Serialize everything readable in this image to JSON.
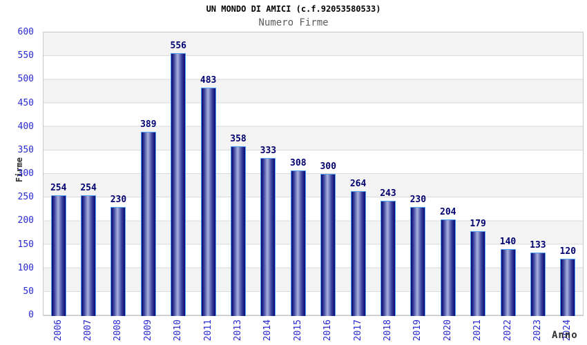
{
  "header": {
    "title": "UN MONDO DI AMICI (c.f.92053580533)",
    "subtitle": "Numero Firme"
  },
  "chart_data": {
    "type": "bar",
    "title": "UN MONDO DI AMICI (c.f.92053580533)",
    "subtitle": "Numero Firme",
    "xlabel": "Anno",
    "ylabel": "Firme",
    "categories": [
      "2006",
      "2007",
      "2008",
      "2009",
      "2010",
      "2011",
      "2013",
      "2014",
      "2015",
      "2016",
      "2017",
      "2018",
      "2019",
      "2020",
      "2021",
      "2022",
      "2023",
      "2024"
    ],
    "values": [
      254,
      254,
      230,
      389,
      556,
      483,
      358,
      333,
      308,
      300,
      264,
      243,
      230,
      204,
      179,
      140,
      133,
      120
    ],
    "ylim": [
      0,
      600
    ],
    "ytick_step": 50,
    "grid": true,
    "background_bands": "alternating gray/white every 50 units, gray at top band",
    "legend": null,
    "bar_value_labels": true,
    "x_tick_rotation_deg": 90
  },
  "colors": {
    "title": "#000000",
    "subtitle": "#5b5b5b",
    "axis_title": "#2e2e2e",
    "tick_label": "#2727d2",
    "value_label": "#000070",
    "band_gray": "#f3f3f3",
    "grid_line": "#dadada",
    "plot_border": "#c8c8c8",
    "bar_border": "#55a0f0",
    "bar_dark": "#10107a",
    "bar_mid": "#3f47a0",
    "bar_light": "#aab1de"
  }
}
